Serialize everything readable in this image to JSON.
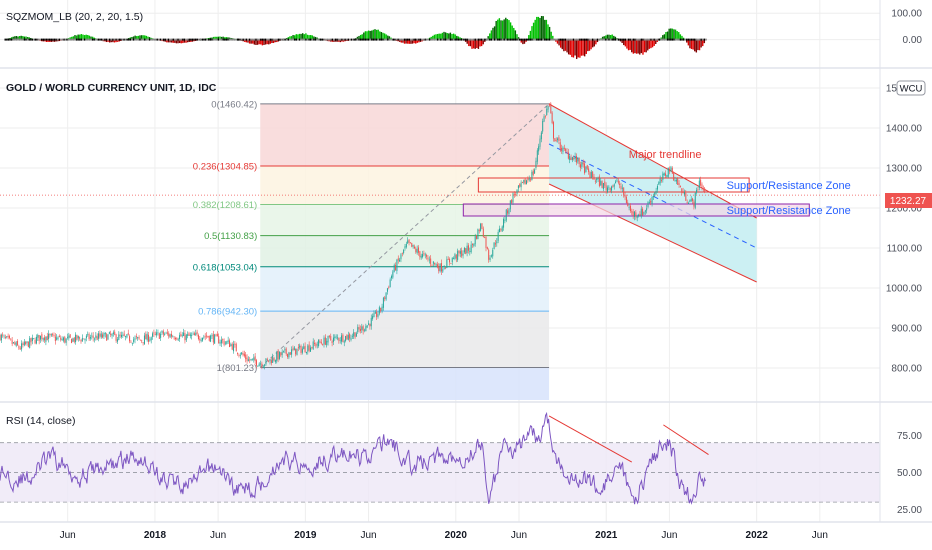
{
  "colors": {
    "background": "#ffffff",
    "grid": "#eeeeee",
    "separator": "#e0e3eb",
    "text": "#131722",
    "axis_text": "#4a4e59",
    "candle_up": "#26a69a",
    "candle_down": "#ef5350",
    "rsi_line": "#7e57c2",
    "rsi_band": "#ede7f6",
    "trend_red": "#e53935",
    "support_blue": "#2962ff",
    "price_label_bg": "#ef5350"
  },
  "momentum_panel": {
    "title": "SQZMOM_LB (20, 2, 20, 1.5)",
    "yaxis_ticks": [
      "100.00",
      "0.00"
    ],
    "y_range": [
      -100,
      150
    ],
    "bars_x_range": [
      2017.0,
      2021.66
    ],
    "up_color": "#00c000",
    "down_color": "#e00000",
    "segments": [
      {
        "x": [
          2017.0,
          2017.2
        ],
        "peak": 15
      },
      {
        "x": [
          2017.2,
          2017.4
        ],
        "peak": -10
      },
      {
        "x": [
          2017.4,
          2017.62
        ],
        "peak": 22
      },
      {
        "x": [
          2017.62,
          2017.8
        ],
        "peak": -12
      },
      {
        "x": [
          2017.8,
          2018.0
        ],
        "peak": 18
      },
      {
        "x": [
          2018.0,
          2018.3
        ],
        "peak": -15
      },
      {
        "x": [
          2018.3,
          2018.55
        ],
        "peak": 12
      },
      {
        "x": [
          2018.55,
          2018.85
        ],
        "peak": -22
      },
      {
        "x": [
          2018.85,
          2019.1
        ],
        "peak": 25
      },
      {
        "x": [
          2019.1,
          2019.32
        ],
        "peak": -10
      },
      {
        "x": [
          2019.32,
          2019.58
        ],
        "peak": 42
      },
      {
        "x": [
          2019.58,
          2019.8
        ],
        "peak": -18
      },
      {
        "x": [
          2019.8,
          2020.05
        ],
        "peak": 30
      },
      {
        "x": [
          2020.05,
          2020.2
        ],
        "peak": -40
      },
      {
        "x": [
          2020.2,
          2020.42
        ],
        "peak": 90
      },
      {
        "x": [
          2020.42,
          2020.47
        ],
        "peak": -20
      },
      {
        "x": [
          2020.47,
          2020.65
        ],
        "peak": 100
      },
      {
        "x": [
          2020.65,
          2020.95
        ],
        "peak": -75
      },
      {
        "x": [
          2020.95,
          2021.08
        ],
        "peak": 22
      },
      {
        "x": [
          2021.08,
          2021.35
        ],
        "peak": -60
      },
      {
        "x": [
          2021.35,
          2021.52
        ],
        "peak": 45
      },
      {
        "x": [
          2021.52,
          2021.66
        ],
        "peak": -50
      }
    ]
  },
  "chart_data": {
    "type": "candlestick",
    "title": "GOLD / WORLD CURRENCY UNIT, 1D, IDC",
    "currency_badge": "WCU",
    "last_price": "1232.27",
    "x_range": [
      2016.97,
      2022.82
    ],
    "y_range": [
      720,
      1520
    ],
    "x_ticks": [
      {
        "label": "Jun",
        "x": 2017.42
      },
      {
        "label": "2018",
        "x": 2018.0
      },
      {
        "label": "Jun",
        "x": 2018.42
      },
      {
        "label": "2019",
        "x": 2019.0
      },
      {
        "label": "Jun",
        "x": 2019.42
      },
      {
        "label": "2020",
        "x": 2020.0
      },
      {
        "label": "Jun",
        "x": 2020.42
      },
      {
        "label": "2021",
        "x": 2021.0
      },
      {
        "label": "Jun",
        "x": 2021.42
      },
      {
        "label": "2022",
        "x": 2022.0
      },
      {
        "label": "Jun",
        "x": 2022.42
      }
    ],
    "y_ticks": [
      "1500.00",
      "1400.00",
      "1300.00",
      "1200.00",
      "1100.00",
      "1000.00",
      "900.00",
      "800.00"
    ],
    "price_path": [
      [
        2016.97,
        880
      ],
      [
        2017.1,
        850
      ],
      [
        2017.25,
        880
      ],
      [
        2017.4,
        870
      ],
      [
        2017.55,
        875
      ],
      [
        2017.7,
        880
      ],
      [
        2017.9,
        870
      ],
      [
        2018.05,
        885
      ],
      [
        2018.2,
        878
      ],
      [
        2018.35,
        880
      ],
      [
        2018.5,
        860
      ],
      [
        2018.62,
        820
      ],
      [
        2018.72,
        812
      ],
      [
        2018.85,
        835
      ],
      [
        2019.0,
        850
      ],
      [
        2019.15,
        870
      ],
      [
        2019.3,
        880
      ],
      [
        2019.42,
        910
      ],
      [
        2019.5,
        945
      ],
      [
        2019.58,
        1040
      ],
      [
        2019.68,
        1110
      ],
      [
        2019.78,
        1080
      ],
      [
        2019.9,
        1050
      ],
      [
        2020.0,
        1080
      ],
      [
        2020.1,
        1100
      ],
      [
        2020.17,
        1160
      ],
      [
        2020.22,
        1075
      ],
      [
        2020.3,
        1150
      ],
      [
        2020.38,
        1230
      ],
      [
        2020.45,
        1260
      ],
      [
        2020.52,
        1290
      ],
      [
        2020.58,
        1420
      ],
      [
        2020.62,
        1460
      ],
      [
        2020.65,
        1380
      ],
      [
        2020.72,
        1340
      ],
      [
        2020.8,
        1320
      ],
      [
        2020.9,
        1280
      ],
      [
        2021.0,
        1250
      ],
      [
        2021.08,
        1265
      ],
      [
        2021.17,
        1185
      ],
      [
        2021.25,
        1190
      ],
      [
        2021.35,
        1260
      ],
      [
        2021.42,
        1300
      ],
      [
        2021.52,
        1230
      ],
      [
        2021.58,
        1210
      ],
      [
        2021.62,
        1270
      ],
      [
        2021.66,
        1232
      ]
    ],
    "fibonacci": {
      "x_range": [
        2018.7,
        2020.62
      ],
      "levels": [
        {
          "label": "0(1460.42)",
          "value": 1460.42,
          "line": "#787b86",
          "fill": "#f8d7d7",
          "text": "#787b86"
        },
        {
          "label": "0.236(1304.85)",
          "value": 1304.85,
          "line": "#e53935",
          "fill": "#fdf3e0",
          "text": "#e53935"
        },
        {
          "label": "0.382(1208.61)",
          "value": 1208.61,
          "line": "#81c784",
          "fill": "#e6f4e6",
          "text": "#81c784"
        },
        {
          "label": "0.5(1130.83)",
          "value": 1130.83,
          "line": "#43a047",
          "fill": "#e0f1e4",
          "text": "#43a047"
        },
        {
          "label": "0.618(1053.04)",
          "value": 1053.04,
          "line": "#00897b",
          "fill": "#e2f0fa",
          "text": "#00897b"
        },
        {
          "label": "0.786(942.30)",
          "value": 942.3,
          "line": "#64b5f6",
          "fill": "#e9e9ea",
          "text": "#64b5f6"
        },
        {
          "label": "1(801.23)",
          "value": 801.23,
          "line": "#787b86",
          "fill": "#d7e3fb",
          "text": "#787b86"
        }
      ],
      "extension_value": 720
    },
    "channel": {
      "upper": [
        [
          2020.62,
          1460
        ],
        [
          2022.0,
          1175
        ]
      ],
      "lower": [
        [
          2020.62,
          1260
        ],
        [
          2022.0,
          1015
        ]
      ],
      "mid": [
        [
          2020.62,
          1360
        ],
        [
          2022.0,
          1100
        ]
      ],
      "fill": "#c7eef2"
    },
    "trendline_label": "Major trendline",
    "trendline_label_pos": [
      2021.15,
      1325
    ],
    "zones": [
      {
        "label": "Support/Resistance Zone",
        "x_range": [
          2020.15,
          2021.95
        ],
        "y_range": [
          1240,
          1275
        ],
        "label_pos": [
          2021.8,
          1257
        ]
      },
      {
        "label": "Support/Resistance Zone",
        "x_range": [
          2020.05,
          2022.35
        ],
        "y_range": [
          1180,
          1210
        ],
        "label_pos": [
          2021.8,
          1195
        ]
      }
    ]
  },
  "rsi_panel": {
    "title": "RSI (14, close)",
    "yaxis_ticks": [
      "75.00",
      "50.00",
      "25.00"
    ],
    "y_range": [
      18,
      92
    ],
    "band": [
      30,
      70
    ],
    "series_x_range": [
      2016.97,
      2021.66
    ],
    "anchors": [
      [
        2016.97,
        50
      ],
      [
        2017.15,
        45
      ],
      [
        2017.3,
        60
      ],
      [
        2017.5,
        48
      ],
      [
        2017.7,
        55
      ],
      [
        2017.9,
        62
      ],
      [
        2018.05,
        45
      ],
      [
        2018.25,
        42
      ],
      [
        2018.4,
        55
      ],
      [
        2018.55,
        38
      ],
      [
        2018.7,
        42
      ],
      [
        2018.85,
        60
      ],
      [
        2019.0,
        55
      ],
      [
        2019.2,
        62
      ],
      [
        2019.4,
        60
      ],
      [
        2019.55,
        72
      ],
      [
        2019.7,
        55
      ],
      [
        2019.9,
        60
      ],
      [
        2020.05,
        62
      ],
      [
        2020.18,
        68
      ],
      [
        2020.22,
        32
      ],
      [
        2020.32,
        65
      ],
      [
        2020.45,
        70
      ],
      [
        2020.55,
        75
      ],
      [
        2020.6,
        88
      ],
      [
        2020.68,
        55
      ],
      [
        2020.8,
        48
      ],
      [
        2020.95,
        40
      ],
      [
        2021.1,
        50
      ],
      [
        2021.18,
        30
      ],
      [
        2021.3,
        58
      ],
      [
        2021.42,
        72
      ],
      [
        2021.5,
        40
      ],
      [
        2021.58,
        30
      ],
      [
        2021.62,
        45
      ],
      [
        2021.66,
        45
      ]
    ],
    "trendlines": [
      {
        "points": [
          [
            2020.62,
            88
          ],
          [
            2021.17,
            57
          ]
        ],
        "color": "#e53935"
      },
      {
        "points": [
          [
            2021.38,
            82
          ],
          [
            2021.68,
            62
          ]
        ],
        "color": "#e53935"
      }
    ]
  }
}
